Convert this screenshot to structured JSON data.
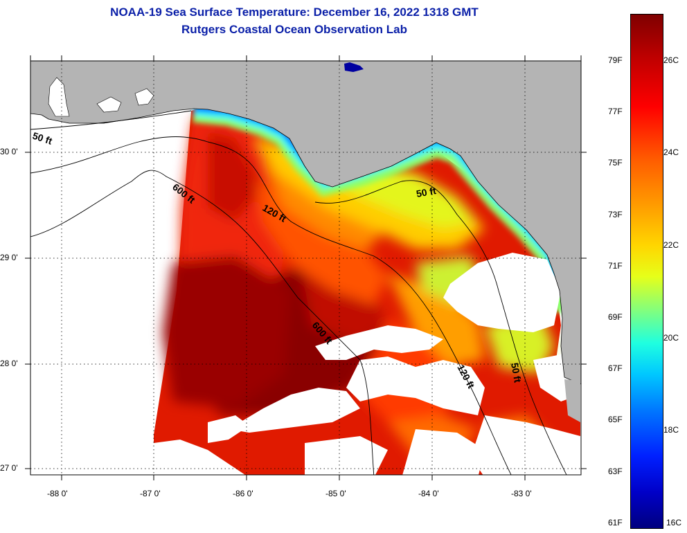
{
  "title": {
    "line1": "NOAA-19 Sea Surface Temperature:  December 16, 2022 1318 GMT",
    "line2": "Rutgers Coastal Ocean Observation Lab"
  },
  "map": {
    "lat_labels": [
      "30 0'",
      "29 0'",
      "28 0'",
      "27 0'"
    ],
    "lon_labels": [
      "-88 0'",
      "-87 0'",
      "-86 0'",
      "-85 0'",
      "-84 0'",
      "-83 0'"
    ],
    "contour_labels": {
      "west_50": "50 ft",
      "west_600": "600 ft",
      "mid_120": "120 ft",
      "mid_600": "600 ft",
      "east_50": "50 ft",
      "south_120": "120 ft",
      "south_50": "50 ft"
    }
  },
  "colorbar": {
    "fahrenheit": [
      "79F",
      "77F",
      "75F",
      "73F",
      "71F",
      "69F",
      "67F",
      "65F",
      "63F",
      "61F"
    ],
    "celsius": [
      "26C",
      "24C",
      "22C",
      "20C",
      "18C",
      "16C"
    ]
  },
  "colors": {
    "land": "#b4b4b4",
    "title": "#0a1fa8",
    "cloud": "#ffffff"
  }
}
